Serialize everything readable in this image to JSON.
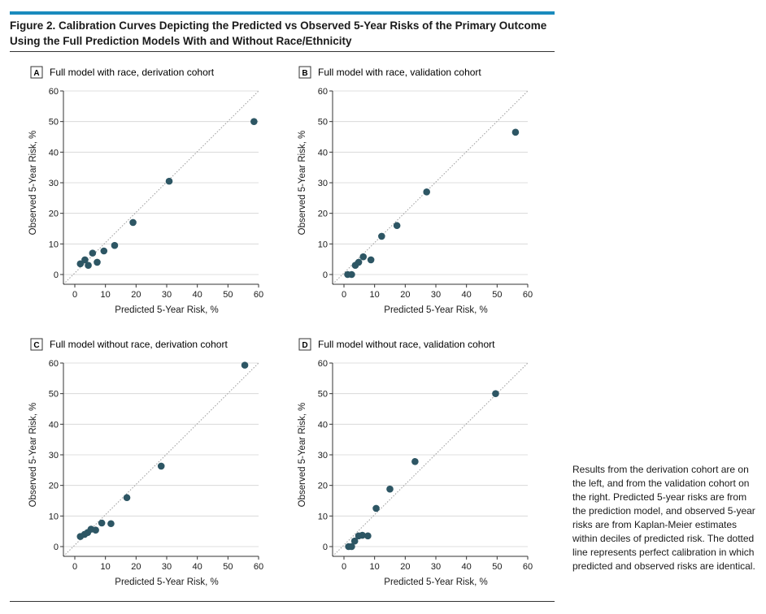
{
  "figure": {
    "title": "Figure 2. Calibration Curves Depicting the Predicted vs Observed 5-Year Risks of the Primary Outcome Using the Full Prediction Models With and Without Race/Ethnicity",
    "footnote": "Results from the derivation cohort are on the left, and from the validation cohort on the right. Predicted 5-year risks are from the prediction model, and observed 5-year risks are from Kaplan-Meier estimates within deciles of predicted risk. The dotted line represents perfect calibration in which predicted and observed risks are identical."
  },
  "colors": {
    "accent_rule": "#1a8bbd",
    "point": "#2d5664",
    "reference_line": "#9a9a9a"
  },
  "chart_data": [
    {
      "type": "scatter",
      "letter": "A",
      "title": "Full model with race, derivation cohort",
      "xlabel": "Predicted 5-Year Risk, %",
      "ylabel": "Observed 5-Year Risk, %",
      "xlim": [
        0,
        60
      ],
      "ylim": [
        0,
        60
      ],
      "xticks": [
        0,
        10,
        20,
        30,
        40,
        50,
        60
      ],
      "yticks": [
        0,
        10,
        20,
        30,
        40,
        50,
        60
      ],
      "reference_line": "y = x",
      "points": [
        {
          "x": 1.8,
          "y": 3.5
        },
        {
          "x": 3.3,
          "y": 4.8
        },
        {
          "x": 4.4,
          "y": 3.0
        },
        {
          "x": 5.8,
          "y": 7.0
        },
        {
          "x": 7.3,
          "y": 4.0
        },
        {
          "x": 9.5,
          "y": 7.7
        },
        {
          "x": 13.0,
          "y": 9.5
        },
        {
          "x": 19.0,
          "y": 17.0
        },
        {
          "x": 30.8,
          "y": 30.5
        },
        {
          "x": 58.5,
          "y": 50.0
        }
      ]
    },
    {
      "type": "scatter",
      "letter": "B",
      "title": "Full model with race, validation cohort",
      "xlabel": "Predicted 5-Year Risk, %",
      "ylabel": "Observed 5-Year Risk, %",
      "xlim": [
        0,
        60
      ],
      "ylim": [
        0,
        60
      ],
      "xticks": [
        0,
        10,
        20,
        30,
        40,
        50,
        60
      ],
      "yticks": [
        0,
        10,
        20,
        30,
        40,
        50,
        60
      ],
      "reference_line": "y = x",
      "points": [
        {
          "x": 1.2,
          "y": 0.0
        },
        {
          "x": 2.5,
          "y": 0.0
        },
        {
          "x": 3.7,
          "y": 3.0
        },
        {
          "x": 4.8,
          "y": 4.0
        },
        {
          "x": 6.3,
          "y": 5.8
        },
        {
          "x": 8.8,
          "y": 4.8
        },
        {
          "x": 12.3,
          "y": 12.5
        },
        {
          "x": 17.3,
          "y": 16.0
        },
        {
          "x": 27.0,
          "y": 27.0
        },
        {
          "x": 56.0,
          "y": 46.5
        }
      ]
    },
    {
      "type": "scatter",
      "letter": "C",
      "title": "Full model without race, derivation cohort",
      "xlabel": "Predicted 5-Year Risk, %",
      "ylabel": "Observed 5-Year Risk, %",
      "xlim": [
        0,
        60
      ],
      "ylim": [
        0,
        60
      ],
      "xticks": [
        0,
        10,
        20,
        30,
        40,
        50,
        60
      ],
      "yticks": [
        0,
        10,
        20,
        30,
        40,
        50,
        60
      ],
      "reference_line": "y = x",
      "points": [
        {
          "x": 1.8,
          "y": 3.3
        },
        {
          "x": 3.2,
          "y": 4.0
        },
        {
          "x": 4.2,
          "y": 4.6
        },
        {
          "x": 5.3,
          "y": 5.7
        },
        {
          "x": 6.8,
          "y": 5.4
        },
        {
          "x": 8.8,
          "y": 7.7
        },
        {
          "x": 11.8,
          "y": 7.5
        },
        {
          "x": 17.0,
          "y": 16.0
        },
        {
          "x": 28.2,
          "y": 26.3
        },
        {
          "x": 55.5,
          "y": 59.3
        }
      ]
    },
    {
      "type": "scatter",
      "letter": "D",
      "title": "Full model without race, validation cohort",
      "xlabel": "Predicted 5-Year Risk, %",
      "ylabel": "Observed 5-Year Risk, %",
      "xlim": [
        0,
        60
      ],
      "ylim": [
        0,
        60
      ],
      "xticks": [
        0,
        10,
        20,
        30,
        40,
        50,
        60
      ],
      "yticks": [
        0,
        10,
        20,
        30,
        40,
        50,
        60
      ],
      "reference_line": "y = x",
      "points": [
        {
          "x": 1.5,
          "y": 0.0
        },
        {
          "x": 2.5,
          "y": 0.0
        },
        {
          "x": 3.5,
          "y": 1.8
        },
        {
          "x": 4.8,
          "y": 3.5
        },
        {
          "x": 6.0,
          "y": 3.7
        },
        {
          "x": 7.8,
          "y": 3.5
        },
        {
          "x": 10.5,
          "y": 12.5
        },
        {
          "x": 15.0,
          "y": 18.8
        },
        {
          "x": 23.2,
          "y": 27.8
        },
        {
          "x": 49.5,
          "y": 50.0
        }
      ]
    }
  ]
}
